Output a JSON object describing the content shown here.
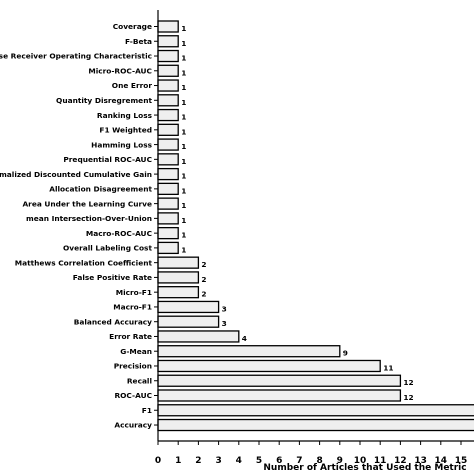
{
  "chart_data": {
    "type": "bar",
    "orientation": "horizontal",
    "title": "",
    "xlabel": "Number of Articles that Used the Metric",
    "ylabel": "",
    "xlim": [
      0,
      15.5
    ],
    "xticks": [
      0,
      1,
      2,
      3,
      4,
      5,
      6,
      7,
      8,
      9,
      10,
      11,
      12,
      13,
      14,
      15
    ],
    "grid": false,
    "legend": "none",
    "bar_fill": "#efefef",
    "bar_edge": "#000000",
    "categories": [
      "Coverage",
      "F-Beta",
      "Response Receiver Operating Characteristic",
      "Micro-ROC-AUC",
      "One Error",
      "Quantity Disregrement",
      "Ranking Loss",
      "F1 Weighted",
      "Hamming Loss",
      "Prequential ROC-AUC",
      "Normalized Discounted Cumulative Gain",
      "Allocation Disagreement",
      "Area Under the Learning Curve",
      "mean Intersection-Over-Union",
      "Macro-ROC-AUC",
      "Overall Labeling Cost",
      "Matthews Correlation Coefficient",
      "False Positive Rate",
      "Micro-F1",
      "Macro-F1",
      "Balanced Accuracy",
      "Error Rate",
      "G-Mean",
      "Precision",
      "Recall",
      "ROC-AUC",
      "F1",
      "Accuracy"
    ],
    "values": [
      1,
      1,
      1,
      1,
      1,
      1,
      1,
      1,
      1,
      1,
      1,
      1,
      1,
      1,
      1,
      1,
      2,
      2,
      2,
      3,
      3,
      4,
      9,
      11,
      12,
      12,
      16,
      16
    ],
    "data_labels": [
      "1",
      "1",
      "1",
      "1",
      "1",
      "1",
      "1",
      "1",
      "1",
      "1",
      "1",
      "1",
      "1",
      "1",
      "1",
      "1",
      "2",
      "2",
      "2",
      "3",
      "3",
      "4",
      "9",
      "11",
      "12",
      "12",
      "",
      ""
    ]
  }
}
